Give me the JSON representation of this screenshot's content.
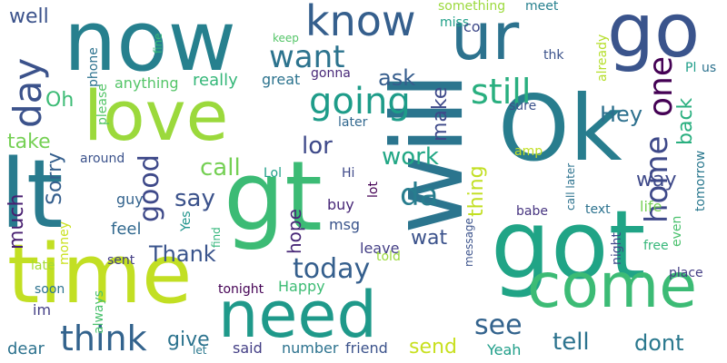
{
  "words": [
    {
      "text": "now",
      "color": "#26808e"
    },
    {
      "text": "go",
      "color": "#3a548c"
    },
    {
      "text": "ur",
      "color": "#2c728e"
    },
    {
      "text": "love",
      "color": "#9bd93c"
    },
    {
      "text": "Ok",
      "color": "#287d8e"
    },
    {
      "text": "lt",
      "color": "#297b8e"
    },
    {
      "text": "gt",
      "color": "#3cbb75"
    },
    {
      "text": "got",
      "color": "#20a486"
    },
    {
      "text": "time",
      "color": "#c2df23"
    },
    {
      "text": "need",
      "color": "#1f998a"
    },
    {
      "text": "come",
      "color": "#3cbb75"
    },
    {
      "text": "will",
      "color": "#2b758e"
    },
    {
      "text": "know",
      "color": "#355f8d"
    },
    {
      "text": "want",
      "color": "#2c738e"
    },
    {
      "text": "day",
      "color": "#3b528b"
    },
    {
      "text": "well",
      "color": "#3b528b"
    },
    {
      "text": "going",
      "color": "#1e9c89"
    },
    {
      "text": "still",
      "color": "#29af7f"
    },
    {
      "text": "one",
      "color": "#440154"
    },
    {
      "text": "good",
      "color": "#3e4989"
    },
    {
      "text": "think",
      "color": "#33638d"
    },
    {
      "text": "today",
      "color": "#355f8d"
    },
    {
      "text": "home",
      "color": "#3e4989"
    },
    {
      "text": "back",
      "color": "#29af7f"
    },
    {
      "text": "da",
      "color": "#287d8e"
    },
    {
      "text": "work",
      "color": "#22a785"
    },
    {
      "text": "call",
      "color": "#75d054"
    },
    {
      "text": "see",
      "color": "#33638d"
    },
    {
      "text": "tell",
      "color": "#2c738e"
    },
    {
      "text": "dont",
      "color": "#2a788e"
    },
    {
      "text": "Hey",
      "color": "#2d708e"
    },
    {
      "text": "lor",
      "color": "#3e4989"
    },
    {
      "text": "ask",
      "color": "#365d8d"
    },
    {
      "text": "make",
      "color": "#3e4989"
    },
    {
      "text": "thing",
      "color": "#c2df23"
    },
    {
      "text": "say",
      "color": "#3b528b"
    },
    {
      "text": "Sorry",
      "color": "#355f8d"
    },
    {
      "text": "much",
      "color": "#481f70"
    },
    {
      "text": "take",
      "color": "#75d054"
    },
    {
      "text": "Oh",
      "color": "#3cbb75"
    },
    {
      "text": "Thank",
      "color": "#3a548c"
    },
    {
      "text": "way",
      "color": "#3e4989"
    },
    {
      "text": "give",
      "color": "#2c738e"
    },
    {
      "text": "send",
      "color": "#c8e020"
    },
    {
      "text": "wat",
      "color": "#3b528b"
    },
    {
      "text": "hope",
      "color": "#482878"
    },
    {
      "text": "something",
      "color": "#9bd93c"
    },
    {
      "text": "miss",
      "color": "#1fa088"
    },
    {
      "text": "meet",
      "color": "#26808e"
    },
    {
      "text": "co",
      "color": "#3e4989"
    },
    {
      "text": "keep",
      "color": "#54c568"
    },
    {
      "text": "fine",
      "color": "#35b779"
    },
    {
      "text": "phone",
      "color": "#2c728e"
    },
    {
      "text": "please",
      "color": "#54c568"
    },
    {
      "text": "anything",
      "color": "#54c568"
    },
    {
      "text": "really",
      "color": "#35b779"
    },
    {
      "text": "great",
      "color": "#2c738e"
    },
    {
      "text": "gonna",
      "color": "#482878"
    },
    {
      "text": "already",
      "color": "#b5de2b"
    },
    {
      "text": "thk",
      "color": "#3b528b"
    },
    {
      "text": "Pl",
      "color": "#1f9e89"
    },
    {
      "text": "us",
      "color": "#2c728e"
    },
    {
      "text": "tomorrow",
      "color": "#2a788e"
    },
    {
      "text": "later",
      "color": "#31688e"
    },
    {
      "text": "sure",
      "color": "#3b528b"
    },
    {
      "text": "amp",
      "color": "#c2df23"
    },
    {
      "text": "call later",
      "color": "#2c728e"
    },
    {
      "text": "around",
      "color": "#3b528b"
    },
    {
      "text": "guy",
      "color": "#33638d"
    },
    {
      "text": "Lol",
      "color": "#1fa088"
    },
    {
      "text": "Hi",
      "color": "#3e4989"
    },
    {
      "text": "lot",
      "color": "#440154"
    },
    {
      "text": "buy",
      "color": "#482878"
    },
    {
      "text": "msg",
      "color": "#3a548c"
    },
    {
      "text": "feel",
      "color": "#31688e"
    },
    {
      "text": "money",
      "color": "#cae11f"
    },
    {
      "text": "Yes",
      "color": "#1f948c"
    },
    {
      "text": "find",
      "color": "#32b67a"
    },
    {
      "text": "babe",
      "color": "#463480"
    },
    {
      "text": "text",
      "color": "#2c728e"
    },
    {
      "text": "life",
      "color": "#75d054"
    },
    {
      "text": "even",
      "color": "#4ac16d"
    },
    {
      "text": "message",
      "color": "#3b528b"
    },
    {
      "text": "night",
      "color": "#3e4989"
    },
    {
      "text": "free",
      "color": "#35b779"
    },
    {
      "text": "leave",
      "color": "#433e85"
    },
    {
      "text": "told",
      "color": "#9bd93c"
    },
    {
      "text": "place",
      "color": "#433e85"
    },
    {
      "text": "late",
      "color": "#a5db36"
    },
    {
      "text": "sent",
      "color": "#433e85"
    },
    {
      "text": "soon",
      "color": "#2c728e"
    },
    {
      "text": "always",
      "color": "#4ac16d"
    },
    {
      "text": "tonight",
      "color": "#440154"
    },
    {
      "text": "Happy",
      "color": "#3dbc74"
    },
    {
      "text": "im",
      "color": "#433e85"
    },
    {
      "text": "dear",
      "color": "#2c728e"
    },
    {
      "text": "let",
      "color": "#2a788e"
    },
    {
      "text": "said",
      "color": "#433e85"
    },
    {
      "text": "number",
      "color": "#2c728e"
    },
    {
      "text": "friend",
      "color": "#3b528b"
    },
    {
      "text": "Yeah",
      "color": "#1f9e89"
    }
  ]
}
